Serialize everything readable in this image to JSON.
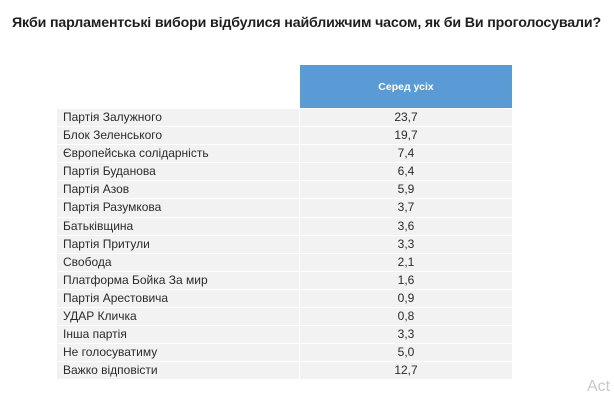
{
  "title": "Якби парламентські вибори відбулися найближчим часом, як би Ви проголосували?",
  "table": {
    "column_header": "Серед усіх",
    "header_color": "#5b9bd5",
    "rows": [
      {
        "label": "Партія Залужного",
        "value": "23,7"
      },
      {
        "label": "Блок Зеленського",
        "value": "19,7"
      },
      {
        "label": "Європейська солідарність",
        "value": "7,4"
      },
      {
        "label": "Партія Буданова",
        "value": "6,4"
      },
      {
        "label": "Партія Азов",
        "value": "5,9"
      },
      {
        "label": "Партія Разумкова",
        "value": "3,7"
      },
      {
        "label": "Батьківщина",
        "value": "3,6"
      },
      {
        "label": "Партія Притули",
        "value": "3,3"
      },
      {
        "label": "Свобода",
        "value": "2,1"
      },
      {
        "label": "Платформа Бойка За мир",
        "value": "1,6"
      },
      {
        "label": "Партія Арестовича",
        "value": "0,9"
      },
      {
        "label": "УДАР Кличка",
        "value": "0,8"
      },
      {
        "label": "Інша партія",
        "value": "3,3"
      },
      {
        "label": "Не голосуватиму",
        "value": "5,0"
      },
      {
        "label": "Важко відповісти",
        "value": "12,7"
      }
    ]
  },
  "watermark": "Act"
}
